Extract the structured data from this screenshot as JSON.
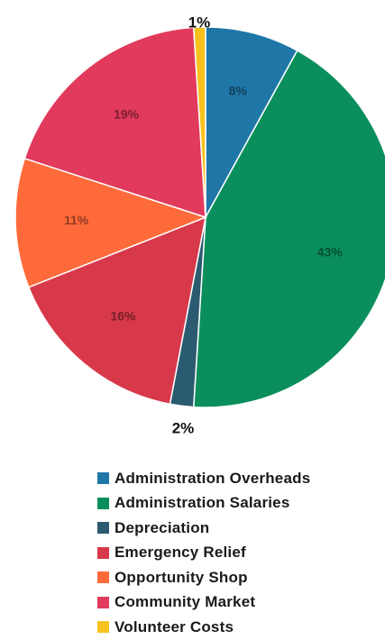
{
  "chart_data": {
    "type": "pie",
    "title": "",
    "start": "12 o'clock",
    "direction": "clockwise",
    "slices": [
      {
        "name": "Administration Overheads",
        "value": 8,
        "label": "8%",
        "color": "#1f77a8"
      },
      {
        "name": "Administration Salaries",
        "value": 43,
        "label": "43%",
        "color": "#0a8f5c"
      },
      {
        "name": "Depreciation",
        "value": 2,
        "label": "2%",
        "color": "#2b5b70"
      },
      {
        "name": "Emergency Relief",
        "value": 16,
        "label": "16%",
        "color": "#d8394a"
      },
      {
        "name": "Opportunity Shop",
        "value": 11,
        "label": "11%",
        "color": "#ff6a3a"
      },
      {
        "name": "Community Market",
        "value": 19,
        "label": "19%",
        "color": "#e13a5c"
      },
      {
        "name": "Volunteer Costs",
        "value": 1,
        "label": "1%",
        "color": "#f7c21e"
      }
    ],
    "legend_position": "bottom"
  }
}
